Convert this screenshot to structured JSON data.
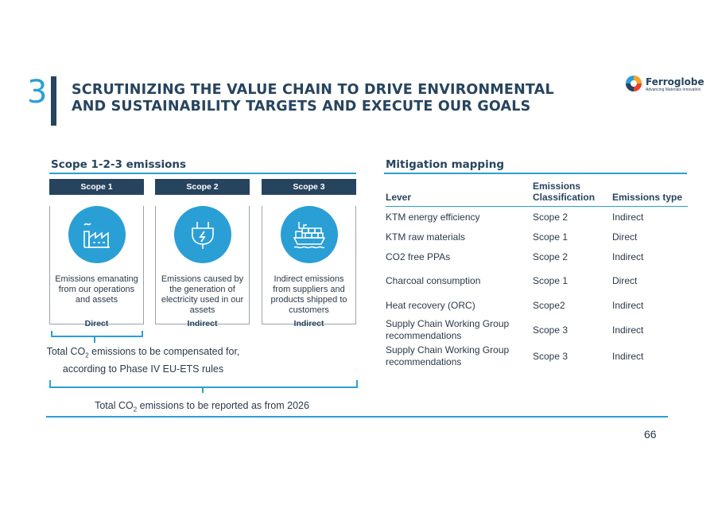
{
  "header": {
    "section_number": "3",
    "title_line1": "SCRUTINIZING THE VALUE CHAIN TO DRIVE ENVIRONMENTAL",
    "title_line2": "AND SUSTAINABILITY TARGETS AND EXECUTE OUR GOALS"
  },
  "logo": {
    "name": "Ferroglobe",
    "tagline": "Advancing Materials Innovation",
    "icon": "ferroglobe-logo-icon"
  },
  "left": {
    "heading": "Scope 1-2-3 emissions",
    "scopes": [
      {
        "label": "Scope 1",
        "icon": "factory-icon",
        "description": "Emissions emanating from our operations and assets",
        "type": "Direct"
      },
      {
        "label": "Scope 2",
        "icon": "electric-plug-icon",
        "description": "Emissions caused by the generation of electricity used in our assets",
        "type": "Indirect"
      },
      {
        "label": "Scope 3",
        "icon": "cargo-ship-icon",
        "description": "Indirect emissions from suppliers and products shipped to customers",
        "type": "Indirect"
      }
    ],
    "note_compensated_pre": "Total CO",
    "note_compensated_sub": "2",
    "note_compensated_post": " emissions to be compensated for,",
    "note_compensated_line2": "according to Phase IV EU-ETS rules",
    "note_reported_pre": "Total CO",
    "note_reported_sub": "2",
    "note_reported_post": " emissions to be reported as from 2026"
  },
  "right": {
    "heading": "Mitigation mapping",
    "columns": [
      "Lever",
      "Emissions Classification",
      "Emissions type"
    ],
    "rows": [
      {
        "lever": "KTM energy efficiency",
        "classification": "Scope 2",
        "type": "Indirect"
      },
      {
        "lever": "KTM raw materials",
        "classification": "Scope 1",
        "type": "Direct"
      },
      {
        "lever": "CO2 free PPAs",
        "classification": "Scope 2",
        "type": "Indirect"
      },
      {
        "lever": "Charcoal consumption",
        "classification": "Scope 1",
        "type": "Direct"
      },
      {
        "lever": "Heat recovery (ORC)",
        "classification": "Scope2",
        "type": "Indirect"
      },
      {
        "lever": "Supply Chain Working Group recommendations",
        "classification": "Scope 3",
        "type": "Indirect"
      },
      {
        "lever": "Supply Chain Working Group recommendations",
        "classification": "Scope 3",
        "type": "Indirect"
      }
    ]
  },
  "page_number": "66",
  "colors": {
    "navy": "#27445f",
    "accent_blue": "#2a9fd6",
    "border_gray": "#9aa3ab"
  }
}
